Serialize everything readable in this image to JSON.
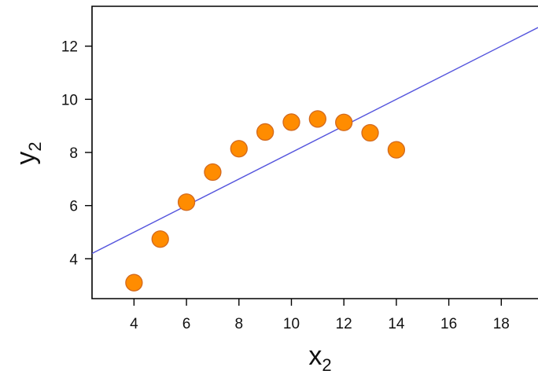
{
  "chart_data": {
    "type": "scatter",
    "title": "",
    "xlabel": "x",
    "xlabel_subscript": "2",
    "ylabel": "y",
    "ylabel_subscript": "2",
    "xlim": [
      2.4,
      19.4
    ],
    "ylim": [
      2.5,
      13.5
    ],
    "x_ticks": [
      4,
      6,
      8,
      10,
      12,
      14,
      16,
      18
    ],
    "y_ticks": [
      4,
      6,
      8,
      10,
      12
    ],
    "grid": false,
    "legend": "none",
    "points": {
      "x": [
        4,
        5,
        6,
        7,
        8,
        9,
        10,
        11,
        12,
        13,
        14
      ],
      "y": [
        3.1,
        4.74,
        6.13,
        7.26,
        8.14,
        8.77,
        9.14,
        9.26,
        9.13,
        8.74,
        8.1
      ]
    },
    "fit_line": {
      "intercept": 3.0,
      "slope": 0.5
    },
    "colors": {
      "point_fill": "#ff8c00",
      "point_stroke": "#d2691e",
      "line": "#5555dd",
      "axis": "#000000"
    }
  }
}
